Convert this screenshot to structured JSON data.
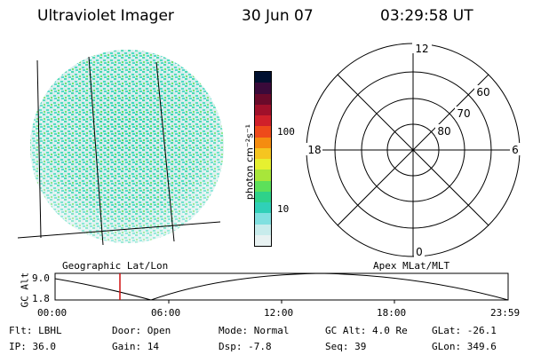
{
  "header": {
    "instrument": "Ultraviolet Imager",
    "date": "30 Jun 07",
    "time": "03:29:58 UT"
  },
  "colorbar": {
    "unit": "photon cm⁻²s⁻¹",
    "ticks": [
      "100",
      "10"
    ],
    "colors": [
      "#001030",
      "#3a0a3a",
      "#6a0a2a",
      "#a0102a",
      "#d0202a",
      "#ee4a1a",
      "#f58c10",
      "#f5c520",
      "#e6f030",
      "#a8e63a",
      "#5ce05a",
      "#2ed28a",
      "#30d0b8",
      "#80e0e0",
      "#c8ecec",
      "#e8f2f2"
    ]
  },
  "polar_plot": {
    "mlt_labels": [
      "12",
      "18",
      "6",
      "0"
    ],
    "lat_labels": [
      "60",
      "70",
      "80"
    ]
  },
  "image_overlay": {
    "left_label": "Geographic Lat/Lon",
    "right_label": "Apex MLat/MLT"
  },
  "altitude_panel": {
    "ylabel": "GC Alt",
    "ytick_top": "9.0",
    "ytick_bottom": "1.8",
    "xticks": [
      "00:00",
      "06:00",
      "12:00",
      "18:00",
      "23:59"
    ],
    "marker_color": "#d01010",
    "marker_time": "03:29:58"
  },
  "info": {
    "flt": "Flt: LBHL",
    "ip": "IP: 36.0",
    "door": "Door: Open",
    "gain": "Gain: 14",
    "mode": "Mode: Normal",
    "dsp": "Dsp:    -7.8",
    "gcalt": "GC Alt: 4.0 Re",
    "seq": "Seq: 39",
    "glat": "GLat: -26.1",
    "glon": "GLon: 349.6"
  }
}
